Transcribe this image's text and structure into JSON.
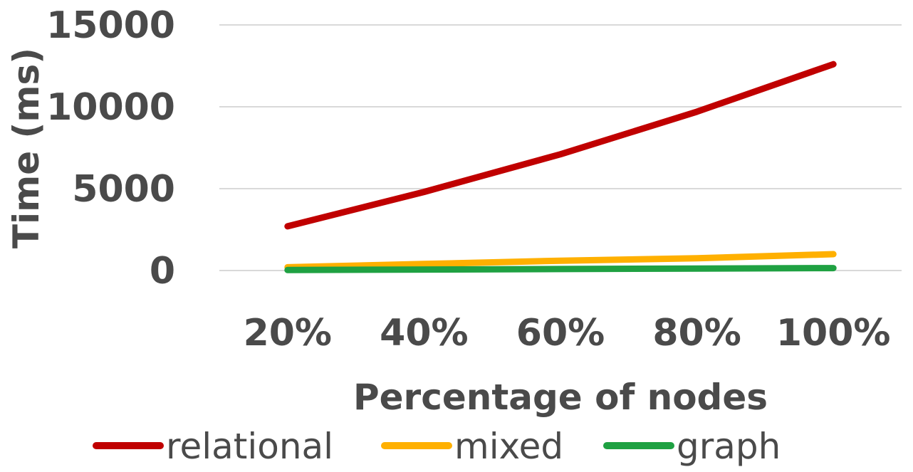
{
  "chart_data": {
    "type": "line",
    "categories": [
      "20%",
      "40%",
      "60%",
      "80%",
      "100%"
    ],
    "series": [
      {
        "name": "relational",
        "color": "#c00000",
        "values": [
          2700,
          4800,
          7100,
          9700,
          12600
        ]
      },
      {
        "name": "mixed",
        "color": "#ffb000",
        "values": [
          200,
          400,
          600,
          750,
          1000
        ]
      },
      {
        "name": "graph",
        "color": "#1fa142",
        "values": [
          30,
          60,
          90,
          120,
          150
        ]
      }
    ],
    "xlabel": "Percentage of nodes",
    "ylabel": "Time (ms)",
    "ylim": [
      0,
      15000
    ],
    "yticks": [
      "0",
      "5000",
      "10000",
      "15000"
    ],
    "grid": true,
    "legend": "bottom"
  }
}
